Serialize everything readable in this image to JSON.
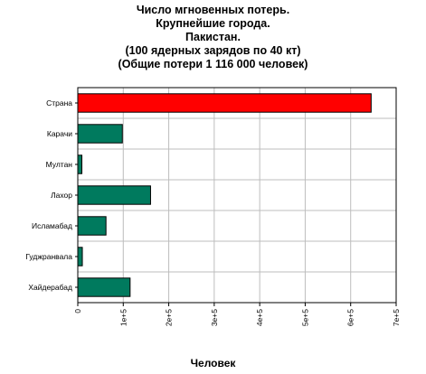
{
  "chart_data": {
    "type": "bar",
    "orientation": "horizontal",
    "title": [
      "Число мгновенных потерь.",
      "Крупнейшие города.",
      "Пакистан.",
      "(100 ядерных зарядов по 40 кт)",
      "(Общие потери 1 116 000 человек)"
    ],
    "xlabel": "Человек",
    "ylabel": "",
    "xlim": [
      0,
      700000
    ],
    "xticks": [
      0,
      100000,
      200000,
      300000,
      400000,
      500000,
      600000,
      700000
    ],
    "xtick_labels": [
      "0",
      "1e+5",
      "2e+5",
      "3e+5",
      "4e+5",
      "5e+5",
      "6e+5",
      "7e+5"
    ],
    "grid": true,
    "categories": [
      "Страна",
      "Карачи",
      "Мултан",
      "Лахор",
      "Исламабад",
      "Гуджранвала",
      "Хайдерабад"
    ],
    "values": [
      645000,
      98000,
      9000,
      160000,
      62000,
      10000,
      115000
    ],
    "colors": [
      "#ff0000",
      "#007a5e",
      "#007a5e",
      "#007a5e",
      "#007a5e",
      "#007a5e",
      "#007a5e"
    ]
  }
}
